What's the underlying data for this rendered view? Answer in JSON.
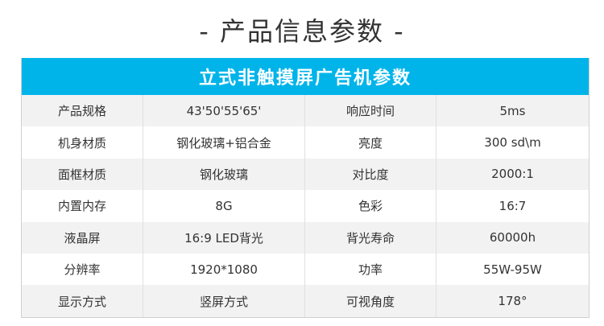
{
  "page_title": "- 产品信息参数 -",
  "table": {
    "title": "立式非触摸屏广告机参数",
    "rows": [
      [
        "产品规格",
        "43'50'55'65'",
        "响应时间",
        "5ms"
      ],
      [
        "机身材质",
        "钢化玻璃+铝合金",
        "亮度",
        "300 sd\\m"
      ],
      [
        "面框材质",
        "钢化玻璃",
        "对比度",
        "2000:1"
      ],
      [
        "内置内存",
        "8G",
        "色彩",
        "16:7"
      ],
      [
        "液晶屏",
        "16:9 LED背光",
        "背光寿命",
        "60000h"
      ],
      [
        "分辨率",
        "1920*1080",
        "功率",
        "55W-95W"
      ],
      [
        "显示方式",
        "竖屏方式",
        "可视角度",
        "178°"
      ]
    ]
  },
  "colors": {
    "header": "#00b4ea",
    "stripe": "#f2f2f2"
  }
}
